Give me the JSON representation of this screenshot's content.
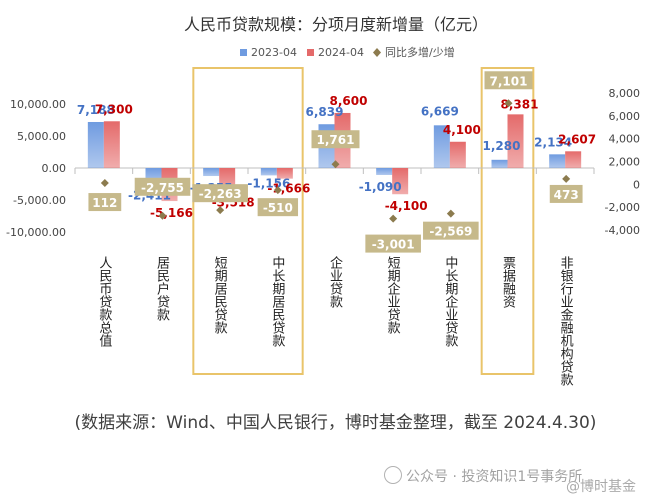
{
  "chart_data": {
    "type": "bar",
    "title": "人民币贷款规模：分项月度新增量（亿元）",
    "categories": [
      "人民币贷款总值",
      "居民户贷款",
      "短期居民贷款",
      "中长期居民贷款",
      "企业贷款",
      "短期企业贷款",
      "中长期企业贷款",
      "票据融资",
      "非银行业金融机构贷款"
    ],
    "series": [
      {
        "name": "2023-04",
        "axis": "left",
        "values": [
          7188,
          -2411,
          -1255,
          -1156,
          6839,
          -1090,
          6669,
          1280,
          2134
        ],
        "label_color": "#4472C4"
      },
      {
        "name": "2024-04",
        "axis": "left",
        "values": [
          7300,
          -5166,
          -3518,
          -1666,
          8600,
          -4100,
          4100,
          8381,
          2607
        ],
        "label_color": "#C00000"
      },
      {
        "name": "同比多增/少增",
        "axis": "right",
        "marker": "diamond",
        "values": [
          112,
          -2755,
          -2263,
          -510,
          1761,
          -3001,
          -2569,
          7101,
          473
        ]
      }
    ],
    "y_left": {
      "min": -10000,
      "max": 10000,
      "ticks": [
        "10,000.00",
        "5,000.00",
        "0.00",
        "-5,000.00",
        "-10,000.00"
      ]
    },
    "y_right": {
      "min": -4000,
      "max": 8000,
      "ticks": [
        "8,000",
        "6,000",
        "4,000",
        "2,000",
        "0",
        "-2,000",
        "-4,000"
      ]
    },
    "highlighted_categories": [
      "短期居民贷款",
      "中长期居民贷款",
      "票据融资"
    ],
    "legend_position": "top",
    "grid": false,
    "colors": {
      "bar_2023": "#6F9BE0",
      "bar_2024": "#E46A6A",
      "diff_label_bg": "#C6B98B",
      "diff_marker": "#8C7B4E",
      "highlight_box": "#E9C46A"
    }
  },
  "footer": {
    "source": "(数据来源：Wind、中国人民银行，博时基金整理，截至 2024.4.30)",
    "watermark": "公众号 · 投资知识1号事务所",
    "watermark2": "@博时基金"
  }
}
